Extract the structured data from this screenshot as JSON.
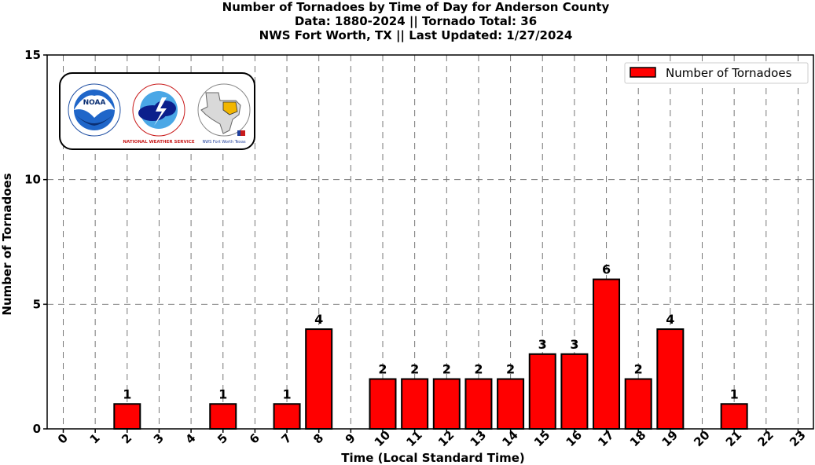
{
  "chart_data": {
    "type": "bar",
    "title": [
      "Number of Tornadoes by Time of Day for Anderson County",
      "Data: 1880-2024 || Tornado Total: 36",
      "NWS Fort Worth, TX || Last Updated: 1/27/2024"
    ],
    "xlabel": "Time (Local Standard Time)",
    "ylabel": "Number of Tornadoes",
    "categories": [
      "0",
      "1",
      "2",
      "3",
      "4",
      "5",
      "6",
      "7",
      "8",
      "9",
      "10",
      "11",
      "12",
      "13",
      "14",
      "15",
      "16",
      "17",
      "18",
      "19",
      "20",
      "21",
      "22",
      "23"
    ],
    "series": [
      {
        "name": "Number of Tornadoes",
        "values": [
          0,
          0,
          1,
          0,
          0,
          1,
          0,
          1,
          4,
          0,
          2,
          2,
          2,
          2,
          2,
          3,
          3,
          6,
          2,
          4,
          0,
          1,
          0,
          0
        ],
        "color": "#ff0000"
      }
    ],
    "yticks": [
      0,
      5,
      10,
      15
    ],
    "ylim": [
      0,
      15
    ],
    "grid": true,
    "legend_position": "top-right",
    "logo_badges": [
      "NOAA",
      "NATIONAL WEATHER SERVICE",
      "NWS Fort Worth Texas"
    ]
  }
}
